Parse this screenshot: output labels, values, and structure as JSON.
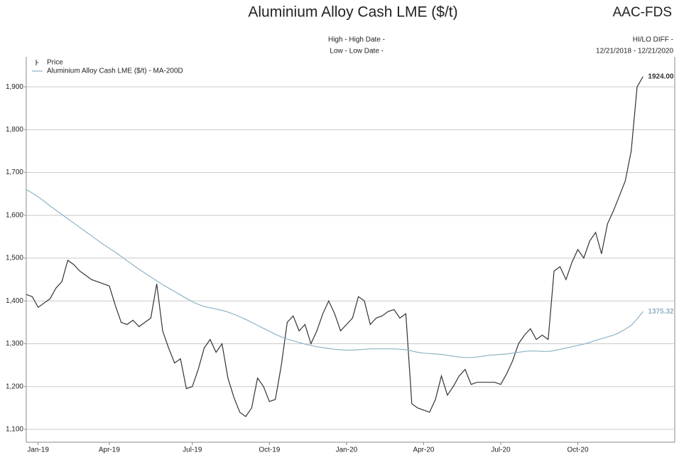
{
  "chart_data": {
    "type": "line",
    "title": "Aluminium Alloy Cash LME ($/t)",
    "symbol": "AAC-FDS",
    "header_left": [
      "High - High Date -",
      "Low - Low Date -"
    ],
    "header_right": [
      "HI/LO DIFF -",
      "12/21/2018 - 12/21/2020"
    ],
    "categories": [
      null,
      null,
      "Jan-19",
      null,
      null,
      null,
      null,
      null,
      null,
      null,
      null,
      null,
      null,
      null,
      "Apr-19",
      null,
      null,
      null,
      null,
      null,
      null,
      null,
      null,
      null,
      null,
      null,
      null,
      null,
      "Jul-19",
      null,
      null,
      null,
      null,
      null,
      null,
      null,
      null,
      null,
      null,
      null,
      null,
      "Oct-19",
      null,
      null,
      null,
      null,
      null,
      null,
      null,
      null,
      null,
      null,
      null,
      null,
      "Jan-20",
      null,
      null,
      null,
      null,
      null,
      null,
      null,
      null,
      null,
      null,
      null,
      null,
      "Apr-20",
      null,
      null,
      null,
      null,
      null,
      null,
      null,
      null,
      null,
      null,
      null,
      null,
      "Jul-20",
      null,
      null,
      null,
      null,
      null,
      null,
      null,
      null,
      null,
      null,
      null,
      null,
      "Oct-20",
      null,
      null,
      null,
      null,
      null,
      null,
      null,
      null,
      null,
      null,
      null
    ],
    "series": [
      {
        "name": "Price",
        "color": "#333333",
        "values": [
          1415,
          1410,
          1385,
          1395,
          1405,
          1430,
          1445,
          1495,
          1485,
          1470,
          1460,
          1450,
          1445,
          1440,
          1435,
          1390,
          1350,
          1345,
          1355,
          1340,
          1350,
          1360,
          1440,
          1330,
          1290,
          1255,
          1265,
          1195,
          1200,
          1240,
          1290,
          1310,
          1280,
          1300,
          1220,
          1175,
          1140,
          1130,
          1150,
          1220,
          1200,
          1165,
          1170,
          1250,
          1350,
          1365,
          1330,
          1345,
          1300,
          1330,
          1370,
          1400,
          1370,
          1330,
          1345,
          1360,
          1410,
          1400,
          1345,
          1360,
          1365,
          1375,
          1380,
          1360,
          1370,
          1160,
          1150,
          1145,
          1140,
          1170,
          1225,
          1180,
          1200,
          1225,
          1240,
          1205,
          1210,
          1210,
          1210,
          1210,
          1205,
          1230,
          1260,
          1300,
          1320,
          1335,
          1310,
          1320,
          1310,
          1470,
          1480,
          1450,
          1490,
          1520,
          1500,
          1540,
          1560,
          1510,
          1580,
          1610,
          1645,
          1680,
          1750,
          1900,
          1924
        ],
        "value_labels": [
          null,
          null,
          null,
          null,
          null,
          null,
          null,
          null,
          null,
          null,
          null,
          null,
          null,
          null,
          null,
          null,
          null,
          null,
          null,
          null,
          null,
          null,
          null,
          null,
          null,
          null,
          null,
          null,
          null,
          null,
          null,
          null,
          null,
          null,
          null,
          null,
          null,
          null,
          null,
          null,
          null,
          null,
          null,
          null,
          null,
          null,
          null,
          null,
          null,
          null,
          null,
          null,
          null,
          null,
          null,
          null,
          null,
          null,
          null,
          null,
          null,
          null,
          null,
          null,
          null,
          null,
          null,
          null,
          null,
          null,
          null,
          null,
          null,
          null,
          null,
          null,
          null,
          null,
          null,
          null,
          null,
          null,
          null,
          null,
          null,
          null,
          null,
          null,
          null,
          null,
          null,
          null,
          null,
          null,
          null,
          null,
          null,
          null,
          null,
          null,
          null,
          null,
          null,
          null,
          "1924.00"
        ]
      },
      {
        "name": "Aluminium Alloy Cash LME ($/t) - MA-200D",
        "color": "#8fb3c4",
        "values": [
          1660,
          1652,
          1643,
          1633,
          1622,
          1612,
          1602,
          1592,
          1582,
          1572,
          1562,
          1552,
          1542,
          1532,
          1523,
          1514,
          1504,
          1494,
          1484,
          1474,
          1465,
          1456,
          1447,
          1438,
          1430,
          1422,
          1414,
          1406,
          1398,
          1392,
          1387,
          1384,
          1381,
          1378,
          1374,
          1369,
          1363,
          1357,
          1350,
          1343,
          1336,
          1329,
          1322,
          1316,
          1311,
          1307,
          1303,
          1299,
          1296,
          1293,
          1291,
          1289,
          1287,
          1286,
          1285,
          1285,
          1286,
          1287,
          1288,
          1288,
          1288,
          1288,
          1288,
          1287,
          1286,
          1283,
          1280,
          1278,
          1277,
          1276,
          1275,
          1273,
          1271,
          1269,
          1268,
          1268,
          1269,
          1271,
          1273,
          1274,
          1275,
          1276,
          1278,
          1280,
          1282,
          1283,
          1283,
          1282,
          1282,
          1284,
          1287,
          1290,
          1293,
          1296,
          1299,
          1303,
          1308,
          1312,
          1316,
          1320,
          1326,
          1334,
          1343,
          1358,
          1375.32
        ],
        "value_labels": [
          null,
          null,
          null,
          null,
          null,
          null,
          null,
          null,
          null,
          null,
          null,
          null,
          null,
          null,
          null,
          null,
          null,
          null,
          null,
          null,
          null,
          null,
          null,
          null,
          null,
          null,
          null,
          null,
          null,
          null,
          null,
          null,
          null,
          null,
          null,
          null,
          null,
          null,
          null,
          null,
          null,
          null,
          null,
          null,
          null,
          null,
          null,
          null,
          null,
          null,
          null,
          null,
          null,
          null,
          null,
          null,
          null,
          null,
          null,
          null,
          null,
          null,
          null,
          null,
          null,
          null,
          null,
          null,
          null,
          null,
          null,
          null,
          null,
          null,
          null,
          null,
          null,
          null,
          null,
          null,
          null,
          null,
          null,
          null,
          null,
          null,
          null,
          null,
          null,
          null,
          null,
          null,
          null,
          null,
          null,
          null,
          null,
          null,
          null,
          null,
          null,
          null,
          null,
          null,
          "1375.32"
        ]
      }
    ],
    "ylim": [
      1070,
      1970
    ],
    "yticks": [
      {
        "value": 1100,
        "label": "1,100"
      },
      {
        "value": 1200,
        "label": "1,200"
      },
      {
        "value": 1300,
        "label": "1,300"
      },
      {
        "value": 1400,
        "label": "1,400"
      },
      {
        "value": 1500,
        "label": "1,500"
      },
      {
        "value": 1600,
        "label": "1,600"
      },
      {
        "value": 1700,
        "label": "1,700"
      },
      {
        "value": 1800,
        "label": "1,800"
      },
      {
        "value": 1900,
        "label": "1,900"
      }
    ],
    "grid": true,
    "legend": "top-left"
  }
}
